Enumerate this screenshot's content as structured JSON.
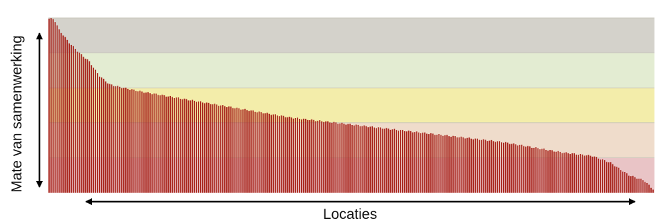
{
  "chart_data": {
    "type": "bar",
    "title": "",
    "xlabel": "Locaties",
    "ylabel": "Mate van samenwerking",
    "ylim": [
      0,
      1
    ],
    "grid": false,
    "legend": "none",
    "bar_color": "#a8241c",
    "bar_count": 300,
    "bands": [
      {
        "from": 0.8,
        "to": 1.0,
        "color": "#d4d2cb"
      },
      {
        "from": 0.6,
        "to": 0.8,
        "color": "#e3ecd2"
      },
      {
        "from": 0.4,
        "to": 0.6,
        "color": "#f3edaa"
      },
      {
        "from": 0.2,
        "to": 0.4,
        "color": "#efdccb"
      },
      {
        "from": 0.0,
        "to": 0.2,
        "color": "#e9c4c6"
      }
    ],
    "profile": [
      {
        "rank": 0.0,
        "value": 0.996
      },
      {
        "rank": 0.008,
        "value": 0.994
      },
      {
        "rank": 0.017,
        "value": 0.93
      },
      {
        "rank": 0.033,
        "value": 0.86
      },
      {
        "rank": 0.05,
        "value": 0.8
      },
      {
        "rank": 0.067,
        "value": 0.75
      },
      {
        "rank": 0.083,
        "value": 0.67
      },
      {
        "rank": 0.1,
        "value": 0.62
      },
      {
        "rank": 0.117,
        "value": 0.605
      },
      {
        "rank": 0.15,
        "value": 0.58
      },
      {
        "rank": 0.2,
        "value": 0.55
      },
      {
        "rank": 0.25,
        "value": 0.52
      },
      {
        "rank": 0.3,
        "value": 0.49
      },
      {
        "rank": 0.35,
        "value": 0.46
      },
      {
        "rank": 0.4,
        "value": 0.43
      },
      {
        "rank": 0.45,
        "value": 0.41
      },
      {
        "rank": 0.5,
        "value": 0.39
      },
      {
        "rank": 0.55,
        "value": 0.37
      },
      {
        "rank": 0.6,
        "value": 0.35
      },
      {
        "rank": 0.65,
        "value": 0.33
      },
      {
        "rank": 0.7,
        "value": 0.31
      },
      {
        "rank": 0.75,
        "value": 0.29
      },
      {
        "rank": 0.8,
        "value": 0.26
      },
      {
        "rank": 0.85,
        "value": 0.23
      },
      {
        "rank": 0.9,
        "value": 0.21
      },
      {
        "rank": 0.93,
        "value": 0.17
      },
      {
        "rank": 0.96,
        "value": 0.1
      },
      {
        "rank": 0.985,
        "value": 0.07
      },
      {
        "rank": 1.0,
        "value": 0.02
      }
    ]
  }
}
